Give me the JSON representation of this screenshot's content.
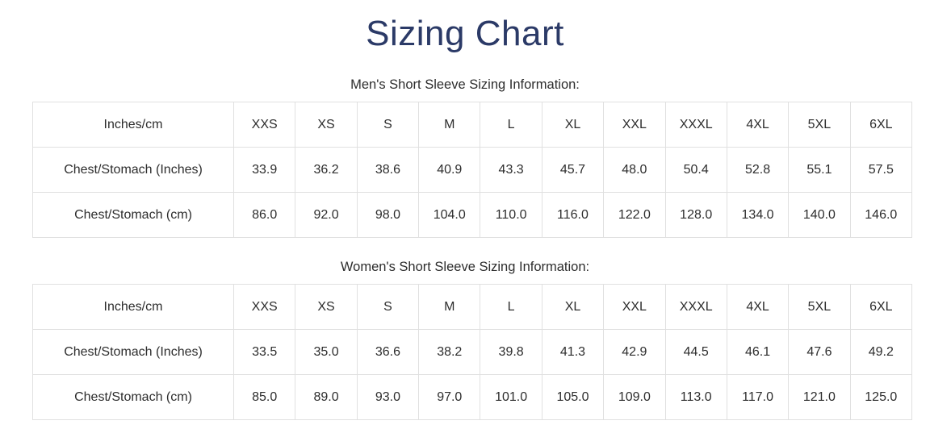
{
  "page": {
    "title": "Sizing Chart",
    "colors": {
      "title_navy": "#2b3a67",
      "body_text": "#2d2d2d",
      "table_border": "#e0e0e0",
      "background": "#ffffff"
    }
  },
  "tables": [
    {
      "caption": "Men's Short Sleeve Sizing Information:",
      "header_label": "Inches/cm",
      "sizes": [
        "XXS",
        "XS",
        "S",
        "M",
        "L",
        "XL",
        "XXL",
        "XXXL",
        "4XL",
        "5XL",
        "6XL"
      ],
      "rows": [
        {
          "label": "Chest/Stomach (Inches)",
          "values": [
            "33.9",
            "36.2",
            "38.6",
            "40.9",
            "43.3",
            "45.7",
            "48.0",
            "50.4",
            "52.8",
            "55.1",
            "57.5"
          ]
        },
        {
          "label": "Chest/Stomach (cm)",
          "values": [
            "86.0",
            "92.0",
            "98.0",
            "104.0",
            "110.0",
            "116.0",
            "122.0",
            "128.0",
            "134.0",
            "140.0",
            "146.0"
          ]
        }
      ]
    },
    {
      "caption": "Women's Short Sleeve Sizing Information:",
      "header_label": "Inches/cm",
      "sizes": [
        "XXS",
        "XS",
        "S",
        "M",
        "L",
        "XL",
        "XXL",
        "XXXL",
        "4XL",
        "5XL",
        "6XL"
      ],
      "rows": [
        {
          "label": "Chest/Stomach (Inches)",
          "values": [
            "33.5",
            "35.0",
            "36.6",
            "38.2",
            "39.8",
            "41.3",
            "42.9",
            "44.5",
            "46.1",
            "47.6",
            "49.2"
          ]
        },
        {
          "label": "Chest/Stomach (cm)",
          "values": [
            "85.0",
            "89.0",
            "93.0",
            "97.0",
            "101.0",
            "105.0",
            "109.0",
            "113.0",
            "117.0",
            "121.0",
            "125.0"
          ]
        }
      ]
    }
  ]
}
